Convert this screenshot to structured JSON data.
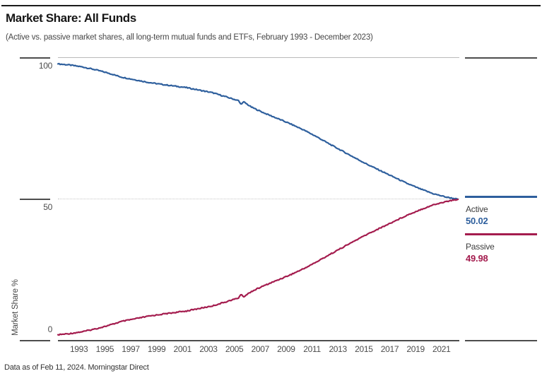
{
  "page": {
    "title": "Market Share: All Funds",
    "subtitle": "(Active vs. passive market shares, all long-term mutual funds and ETFs, February 1993 - December 2023)",
    "footer": "Data as of Feb 11, 2024. Morningstar Direct"
  },
  "chart_data": {
    "type": "line",
    "title": "Market Share: All Funds",
    "xlabel": "",
    "ylabel": "Market Share %",
    "ylim": [
      0,
      100
    ],
    "yticks": [
      100,
      50,
      0
    ],
    "ytick_labels": [
      "100",
      "50",
      "0"
    ],
    "xtick_labels": [
      "1993",
      "1995",
      "1997",
      "1999",
      "2001",
      "2003",
      "2005",
      "2007",
      "2009",
      "2011",
      "2013",
      "2015",
      "2017",
      "2019",
      "2021"
    ],
    "x_start": "1993-02",
    "x_end": "2023-12",
    "grid": {
      "top_line_at": 100,
      "dotted_line_at": 50
    },
    "legend_position": "right",
    "series": [
      {
        "name": "Active",
        "color": "#2E5F9D",
        "final_value": 50.02,
        "final_label": "50.02",
        "anchors": [
          [
            1993.083,
            97.9
          ],
          [
            1994,
            97.5
          ],
          [
            1995,
            96.8
          ],
          [
            1996,
            95.8
          ],
          [
            1997,
            94.6
          ],
          [
            1998,
            93.2
          ],
          [
            1999,
            92.3
          ],
          [
            2000,
            91.4
          ],
          [
            2001,
            90.7
          ],
          [
            2002,
            90.1
          ],
          [
            2003,
            89.5
          ],
          [
            2004,
            88.6
          ],
          [
            2005,
            87.7
          ],
          [
            2006,
            86.3
          ],
          [
            2007.0,
            84.9
          ],
          [
            2007.17,
            83.7
          ],
          [
            2007.42,
            84.4
          ],
          [
            2008,
            82.6
          ],
          [
            2008.8,
            80.9
          ],
          [
            2009,
            80.5
          ],
          [
            2010,
            78.6
          ],
          [
            2011,
            76.7
          ],
          [
            2012,
            74.6
          ],
          [
            2013,
            72.2
          ],
          [
            2014,
            69.6
          ],
          [
            2015,
            67.1
          ],
          [
            2016,
            64.6
          ],
          [
            2017,
            62.2
          ],
          [
            2018,
            60.0
          ],
          [
            2019,
            57.8
          ],
          [
            2020,
            55.6
          ],
          [
            2021,
            53.7
          ],
          [
            2022,
            52.0
          ],
          [
            2023,
            50.8
          ],
          [
            2023.917,
            50.02
          ]
        ]
      },
      {
        "name": "Passive",
        "color": "#A41C4E",
        "final_value": 49.98,
        "final_label": "49.98",
        "derived": "complement-of-active",
        "start_value": 2.1
      }
    ]
  }
}
